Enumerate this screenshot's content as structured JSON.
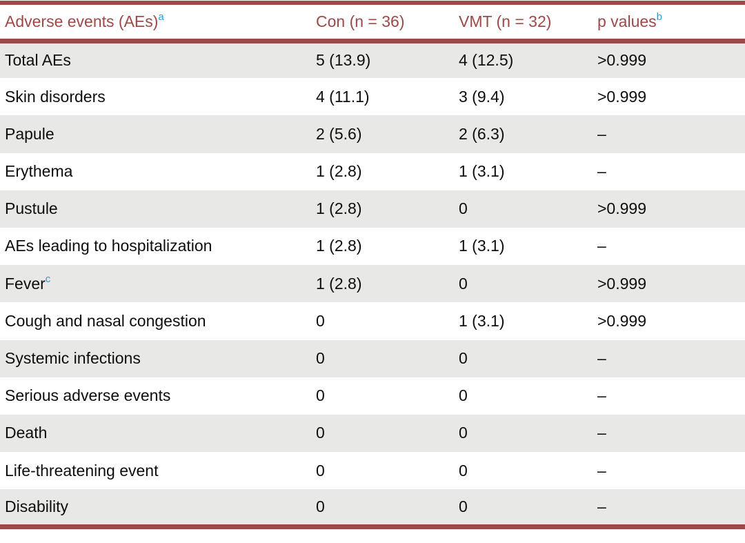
{
  "colors": {
    "rule": "#9d4949",
    "header_text": "#9d4949",
    "superscript_blue": "#2b9cd8",
    "row_alt_bg": "#e8e8e6",
    "body_text": "#0e0e0e"
  },
  "chart_data": {
    "type": "table",
    "title": "Adverse events summary table",
    "columns": [
      "Adverse events (AEs)",
      "Con (n = 36)",
      "VMT (n = 32)",
      "p values"
    ],
    "rows": [
      [
        "Total AEs",
        "5 (13.9)",
        "4 (12.5)",
        ">0.999"
      ],
      [
        "Skin disorders",
        "4 (11.1)",
        "3 (9.4)",
        ">0.999"
      ],
      [
        "Papule",
        "2 (5.6)",
        "2 (6.3)",
        "–"
      ],
      [
        "Erythema",
        "1 (2.8)",
        "1 (3.1)",
        "–"
      ],
      [
        "Pustule",
        "1 (2.8)",
        "0",
        ">0.999"
      ],
      [
        "AEs leading to hospitalization",
        "1 (2.8)",
        "1 (3.1)",
        "–"
      ],
      [
        "Fever",
        "1 (2.8)",
        "0",
        ">0.999"
      ],
      [
        "Cough and nasal congestion",
        "0",
        "1 (3.1)",
        ">0.999"
      ],
      [
        "Systemic infections",
        "0",
        "0",
        "–"
      ],
      [
        "Serious adverse events",
        "0",
        "0",
        "–"
      ],
      [
        "Death",
        "0",
        "0",
        "–"
      ],
      [
        "Life-threatening event",
        "0",
        "0",
        "–"
      ],
      [
        "Disability",
        "0",
        "0",
        "–"
      ]
    ]
  },
  "table": {
    "columns": [
      {
        "label": "Adverse events (AEs)",
        "superscript": "a"
      },
      {
        "label": "Con (n = 36)",
        "superscript": ""
      },
      {
        "label": "VMT (n = 32)",
        "superscript": ""
      },
      {
        "label": "p values",
        "superscript": "b"
      }
    ],
    "rows": [
      {
        "label": "Total AEs",
        "superscript": "",
        "con": "5 (13.9)",
        "vmt": "4 (12.5)",
        "p": ">0.999"
      },
      {
        "label": "Skin disorders",
        "superscript": "",
        "con": "4 (11.1)",
        "vmt": "3 (9.4)",
        "p": ">0.999"
      },
      {
        "label": "Papule",
        "superscript": "",
        "con": "2 (5.6)",
        "vmt": "2 (6.3)",
        "p": "–"
      },
      {
        "label": "Erythema",
        "superscript": "",
        "con": "1 (2.8)",
        "vmt": "1 (3.1)",
        "p": "–"
      },
      {
        "label": "Pustule",
        "superscript": "",
        "con": "1 (2.8)",
        "vmt": "0",
        "p": ">0.999"
      },
      {
        "label": "AEs leading to hospitalization",
        "superscript": "",
        "con": "1 (2.8)",
        "vmt": "1 (3.1)",
        "p": "–"
      },
      {
        "label": "Fever",
        "superscript": "c",
        "con": "1 (2.8)",
        "vmt": "0",
        "p": ">0.999"
      },
      {
        "label": "Cough and nasal congestion",
        "superscript": "",
        "con": "0",
        "vmt": "1 (3.1)",
        "p": ">0.999"
      },
      {
        "label": "Systemic infections",
        "superscript": "",
        "con": "0",
        "vmt": "0",
        "p": "–"
      },
      {
        "label": "Serious adverse events",
        "superscript": "",
        "con": "0",
        "vmt": "0",
        "p": "–"
      },
      {
        "label": "Death",
        "superscript": "",
        "con": "0",
        "vmt": "0",
        "p": "–"
      },
      {
        "label": "Life-threatening event",
        "superscript": "",
        "con": "0",
        "vmt": "0",
        "p": "–"
      },
      {
        "label": "Disability",
        "superscript": "",
        "con": "0",
        "vmt": "0",
        "p": "–"
      }
    ]
  }
}
